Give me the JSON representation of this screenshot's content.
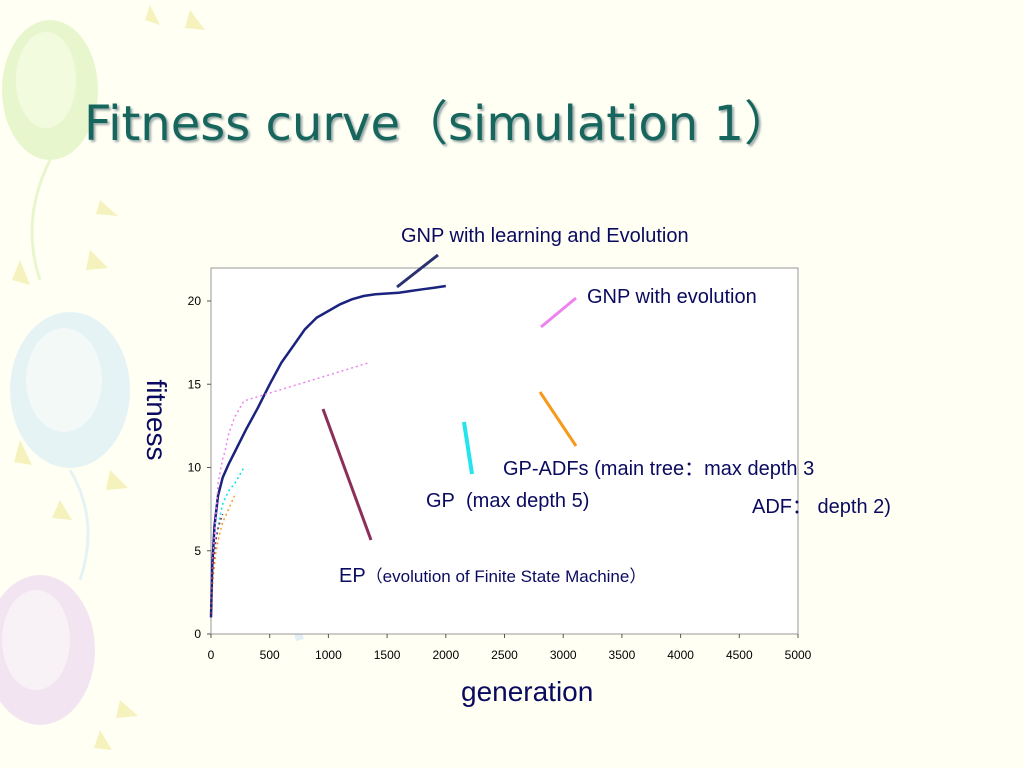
{
  "slide": {
    "title": "Fitness curve（simulation 1）"
  },
  "colors": {
    "title": "#17665e",
    "text": "#0a0a60",
    "gnp_learning": "#1a237e",
    "gnp_evolution": "#ee82ee",
    "gp": "#00e5ee",
    "gp_adfs": "#f59a1a",
    "ep": "#8b2f5a"
  },
  "annotations": {
    "gnp_learning": "GNP with learning and Evolution",
    "gnp_evolution": "GNP with evolution",
    "gp_adfs_line1_a": "GP-ADFs",
    "gp_adfs_line1_b": " (main tree：max depth 3",
    "gp_adfs_line2_a": "ADF",
    "gp_adfs_line2_b": "： depth 2)",
    "gp": "GP  (max depth 5)",
    "ep_a": "EP",
    "ep_b": "（evolution of Finite State Machine）"
  },
  "chart_data": {
    "type": "line",
    "xlabel": "generation",
    "ylabel": "fitness",
    "xlim": [
      0,
      5000
    ],
    "ylim": [
      0,
      22
    ],
    "xticks": [
      0,
      500,
      1000,
      1500,
      2000,
      2500,
      3000,
      3500,
      4000,
      4500,
      5000
    ],
    "yticks": [
      0,
      5,
      10,
      15,
      20
    ],
    "grid": false,
    "series": [
      {
        "name": "GNP with learning and Evolution",
        "color_key": "gnp_learning",
        "x": [
          0,
          10,
          30,
          60,
          100,
          150,
          200,
          300,
          400,
          500,
          600,
          700,
          800,
          900,
          1000,
          1100,
          1200,
          1300,
          1400,
          1500,
          1600,
          1700,
          1800,
          1900,
          2000
        ],
        "y": [
          1.0,
          4.0,
          6.5,
          8.3,
          9.4,
          10.2,
          10.9,
          12.3,
          13.6,
          15.0,
          16.3,
          17.3,
          18.3,
          19.0,
          19.4,
          19.8,
          20.1,
          20.3,
          20.4,
          20.45,
          20.5,
          20.6,
          20.7,
          20.8,
          20.9
        ]
      },
      {
        "name": "GNP with evolution",
        "color_key": "gnp_evolution",
        "x": [
          0,
          10,
          20,
          30,
          40,
          50,
          60,
          80,
          100,
          120,
          150,
          200,
          280,
          1350
        ],
        "y": [
          1.5,
          3.5,
          5.0,
          6.0,
          7.0,
          8.0,
          9.0,
          9.8,
          10.5,
          11.0,
          12.0,
          13.0,
          14.0,
          16.3
        ]
      },
      {
        "name": "GP (max depth 5)",
        "color_key": "gp",
        "x": [
          0,
          20,
          40,
          60,
          80,
          100,
          130,
          160,
          200,
          280
        ],
        "y": [
          1.5,
          4.0,
          5.5,
          6.5,
          7.2,
          7.8,
          8.3,
          8.7,
          9.0,
          10.0
        ]
      },
      {
        "name": "GP-ADFs",
        "color_key": "gp_adfs",
        "x": [
          0,
          20,
          40,
          60,
          80,
          100,
          150,
          200
        ],
        "y": [
          1.5,
          3.5,
          4.8,
          5.6,
          6.2,
          6.7,
          7.5,
          8.3
        ]
      },
      {
        "name": "EP",
        "color_key": "ep",
        "x": [
          0,
          10,
          20,
          30,
          40,
          60,
          80,
          100
        ],
        "y": [
          1.2,
          3.0,
          4.2,
          5.0,
          5.6,
          6.3,
          6.8,
          7.2
        ]
      }
    ]
  }
}
